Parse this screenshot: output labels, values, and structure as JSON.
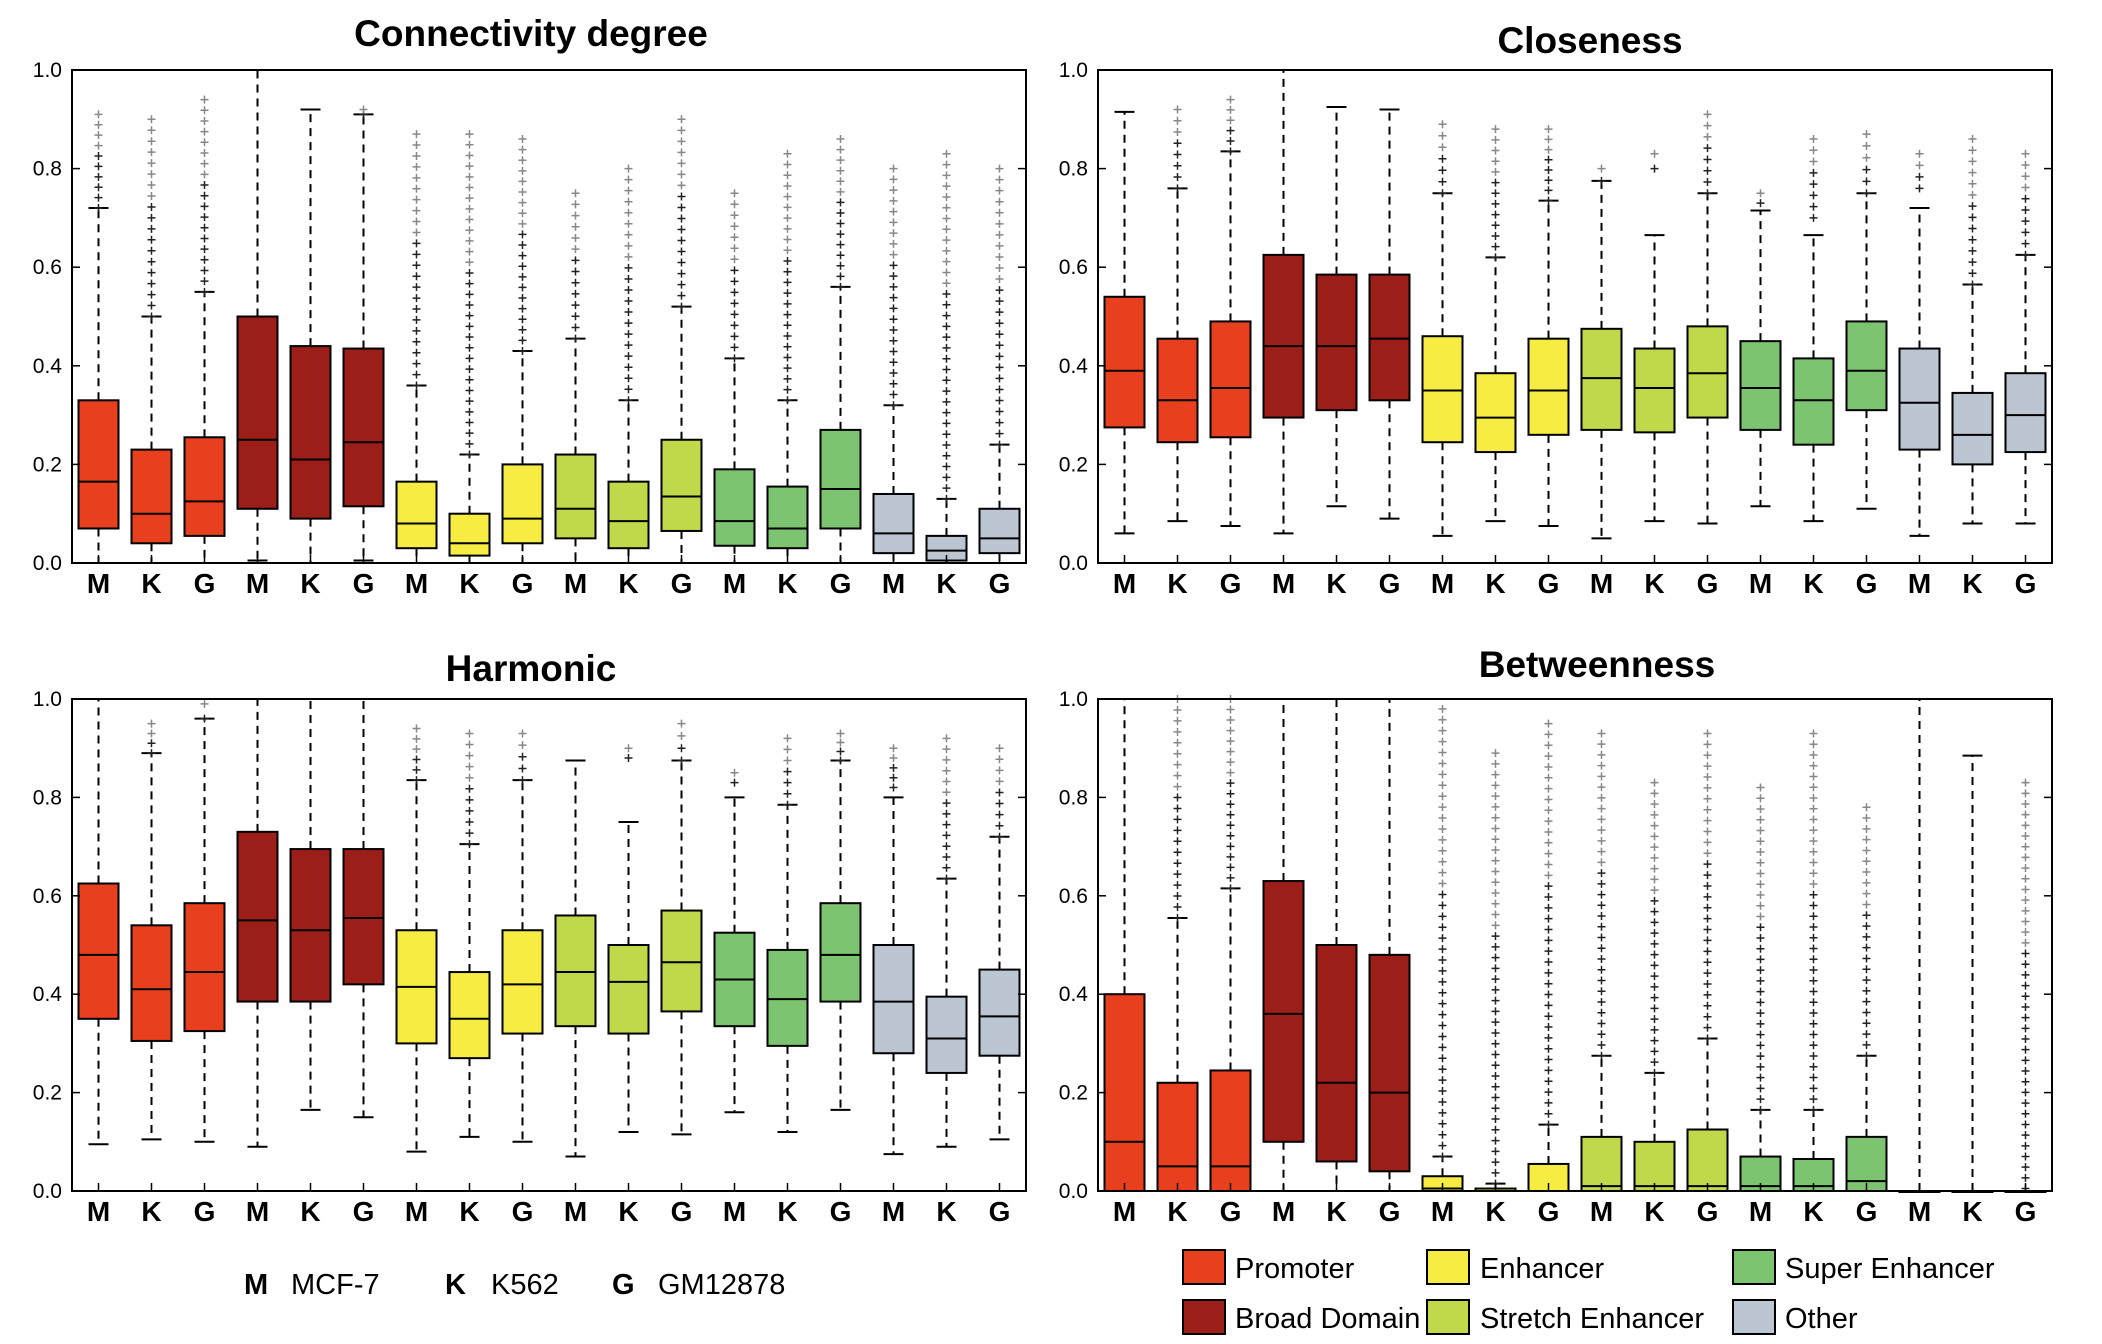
{
  "colors": {
    "Promoter": "#e8401f",
    "Broad Domain": "#9b1e18",
    "Enhancer": "#f6ec42",
    "Stretch Enhancer": "#bfd94a",
    "Super Enhancer": "#7dc470",
    "Other": "#bcc6d2"
  },
  "cell_legend": [
    {
      "key": "M",
      "name": "MCF-7"
    },
    {
      "key": "K",
      "name": "K562"
    },
    {
      "key": "G",
      "name": "GM12878"
    }
  ],
  "region_legend": [
    "Promoter",
    "Enhancer",
    "Super Enhancer",
    "Broad Domain",
    "Stretch Enhancer",
    "Other"
  ],
  "chart_data": [
    {
      "type": "box",
      "title": "Connectivity degree",
      "ylim": [
        0,
        1
      ],
      "yticks": [
        "0.0",
        "0.2",
        "0.4",
        "0.6",
        "0.8",
        "1.0"
      ],
      "categories": [
        "M",
        "K",
        "G",
        "M",
        "K",
        "G",
        "M",
        "K",
        "G",
        "M",
        "K",
        "G",
        "M",
        "K",
        "G",
        "M",
        "K",
        "G"
      ],
      "groups": [
        "Promoter",
        "Promoter",
        "Promoter",
        "Broad Domain",
        "Broad Domain",
        "Broad Domain",
        "Enhancer",
        "Enhancer",
        "Enhancer",
        "Stretch Enhancer",
        "Stretch Enhancer",
        "Stretch Enhancer",
        "Super Enhancer",
        "Super Enhancer",
        "Super Enhancer",
        "Other",
        "Other",
        "Other"
      ],
      "boxes": [
        {
          "wlo": 0.0,
          "q1": 0.07,
          "med": 0.165,
          "q3": 0.33,
          "whi": 0.72,
          "out_min": 0.72,
          "out_max": 0.91
        },
        {
          "wlo": 0.0,
          "q1": 0.04,
          "med": 0.1,
          "q3": 0.23,
          "whi": 0.5,
          "out_min": 0.5,
          "out_max": 0.9
        },
        {
          "wlo": 0.0,
          "q1": 0.055,
          "med": 0.125,
          "q3": 0.255,
          "whi": 0.55,
          "out_min": 0.55,
          "out_max": 0.94
        },
        {
          "wlo": 0.005,
          "q1": 0.11,
          "med": 0.25,
          "q3": 0.5,
          "whi": 1.0,
          "out_min": null,
          "out_max": null
        },
        {
          "wlo": 0.0,
          "q1": 0.09,
          "med": 0.21,
          "q3": 0.44,
          "whi": 0.92,
          "out_min": null,
          "out_max": null
        },
        {
          "wlo": 0.005,
          "q1": 0.115,
          "med": 0.245,
          "q3": 0.435,
          "whi": 0.91,
          "out_min": 0.91,
          "out_max": 0.92
        },
        {
          "wlo": 0.0,
          "q1": 0.03,
          "med": 0.08,
          "q3": 0.165,
          "whi": 0.36,
          "out_min": 0.36,
          "out_max": 0.87
        },
        {
          "wlo": 0.0,
          "q1": 0.015,
          "med": 0.04,
          "q3": 0.1,
          "whi": 0.22,
          "out_min": 0.22,
          "out_max": 0.87
        },
        {
          "wlo": 0.0,
          "q1": 0.04,
          "med": 0.09,
          "q3": 0.2,
          "whi": 0.43,
          "out_min": 0.43,
          "out_max": 0.86
        },
        {
          "wlo": 0.0,
          "q1": 0.05,
          "med": 0.11,
          "q3": 0.22,
          "whi": 0.455,
          "out_min": 0.455,
          "out_max": 0.75
        },
        {
          "wlo": 0.0,
          "q1": 0.03,
          "med": 0.085,
          "q3": 0.165,
          "whi": 0.33,
          "out_min": 0.33,
          "out_max": 0.8
        },
        {
          "wlo": 0.0,
          "q1": 0.065,
          "med": 0.135,
          "q3": 0.25,
          "whi": 0.52,
          "out_min": 0.52,
          "out_max": 0.9
        },
        {
          "wlo": 0.0,
          "q1": 0.035,
          "med": 0.085,
          "q3": 0.19,
          "whi": 0.415,
          "out_min": 0.415,
          "out_max": 0.75
        },
        {
          "wlo": 0.0,
          "q1": 0.03,
          "med": 0.07,
          "q3": 0.155,
          "whi": 0.33,
          "out_min": 0.33,
          "out_max": 0.83
        },
        {
          "wlo": 0.0,
          "q1": 0.07,
          "med": 0.15,
          "q3": 0.27,
          "whi": 0.56,
          "out_min": 0.56,
          "out_max": 0.86
        },
        {
          "wlo": 0.0,
          "q1": 0.02,
          "med": 0.06,
          "q3": 0.14,
          "whi": 0.32,
          "out_min": 0.32,
          "out_max": 0.8
        },
        {
          "wlo": 0.0,
          "q1": 0.005,
          "med": 0.025,
          "q3": 0.055,
          "whi": 0.13,
          "out_min": 0.13,
          "out_max": 0.83
        },
        {
          "wlo": 0.0,
          "q1": 0.02,
          "med": 0.05,
          "q3": 0.11,
          "whi": 0.24,
          "out_min": 0.24,
          "out_max": 0.8
        }
      ]
    },
    {
      "type": "box",
      "title": "Closeness",
      "ylim": [
        0,
        1
      ],
      "yticks": [
        "0.0",
        "0.2",
        "0.4",
        "0.6",
        "0.8",
        "1.0"
      ],
      "categories": [
        "M",
        "K",
        "G",
        "M",
        "K",
        "G",
        "M",
        "K",
        "G",
        "M",
        "K",
        "G",
        "M",
        "K",
        "G",
        "M",
        "K",
        "G"
      ],
      "groups": [
        "Promoter",
        "Promoter",
        "Promoter",
        "Broad Domain",
        "Broad Domain",
        "Broad Domain",
        "Enhancer",
        "Enhancer",
        "Enhancer",
        "Stretch Enhancer",
        "Stretch Enhancer",
        "Stretch Enhancer",
        "Super Enhancer",
        "Super Enhancer",
        "Super Enhancer",
        "Other",
        "Other",
        "Other"
      ],
      "boxes": [
        {
          "wlo": 0.06,
          "q1": 0.275,
          "med": 0.39,
          "q3": 0.54,
          "whi": 0.915,
          "out_min": null,
          "out_max": null
        },
        {
          "wlo": 0.085,
          "q1": 0.245,
          "med": 0.33,
          "q3": 0.455,
          "whi": 0.76,
          "out_min": 0.76,
          "out_max": 0.92
        },
        {
          "wlo": 0.075,
          "q1": 0.255,
          "med": 0.355,
          "q3": 0.49,
          "whi": 0.835,
          "out_min": 0.835,
          "out_max": 0.94
        },
        {
          "wlo": 0.06,
          "q1": 0.295,
          "med": 0.44,
          "q3": 0.625,
          "whi": 1.0,
          "out_min": null,
          "out_max": null
        },
        {
          "wlo": 0.115,
          "q1": 0.31,
          "med": 0.44,
          "q3": 0.585,
          "whi": 0.925,
          "out_min": null,
          "out_max": null
        },
        {
          "wlo": 0.09,
          "q1": 0.33,
          "med": 0.455,
          "q3": 0.585,
          "whi": 0.92,
          "out_min": null,
          "out_max": null
        },
        {
          "wlo": 0.055,
          "q1": 0.245,
          "med": 0.35,
          "q3": 0.46,
          "whi": 0.75,
          "out_min": 0.75,
          "out_max": 0.89
        },
        {
          "wlo": 0.085,
          "q1": 0.225,
          "med": 0.295,
          "q3": 0.385,
          "whi": 0.62,
          "out_min": 0.62,
          "out_max": 0.88
        },
        {
          "wlo": 0.075,
          "q1": 0.26,
          "med": 0.35,
          "q3": 0.455,
          "whi": 0.735,
          "out_min": 0.735,
          "out_max": 0.88
        },
        {
          "wlo": 0.05,
          "q1": 0.27,
          "med": 0.375,
          "q3": 0.475,
          "whi": 0.775,
          "out_min": 0.775,
          "out_max": 0.8
        },
        {
          "wlo": 0.085,
          "q1": 0.265,
          "med": 0.355,
          "q3": 0.435,
          "whi": 0.665,
          "out_min": 0.8,
          "out_max": 0.83
        },
        {
          "wlo": 0.08,
          "q1": 0.295,
          "med": 0.385,
          "q3": 0.48,
          "whi": 0.75,
          "out_min": 0.75,
          "out_max": 0.91
        },
        {
          "wlo": 0.115,
          "q1": 0.27,
          "med": 0.355,
          "q3": 0.45,
          "whi": 0.715,
          "out_min": 0.73,
          "out_max": 0.75
        },
        {
          "wlo": 0.085,
          "q1": 0.24,
          "med": 0.33,
          "q3": 0.415,
          "whi": 0.665,
          "out_min": 0.7,
          "out_max": 0.86
        },
        {
          "wlo": 0.11,
          "q1": 0.31,
          "med": 0.39,
          "q3": 0.49,
          "whi": 0.75,
          "out_min": 0.75,
          "out_max": 0.87
        },
        {
          "wlo": 0.055,
          "q1": 0.23,
          "med": 0.325,
          "q3": 0.435,
          "whi": 0.72,
          "out_min": 0.76,
          "out_max": 0.83
        },
        {
          "wlo": 0.08,
          "q1": 0.2,
          "med": 0.26,
          "q3": 0.345,
          "whi": 0.565,
          "out_min": 0.565,
          "out_max": 0.86
        },
        {
          "wlo": 0.08,
          "q1": 0.225,
          "med": 0.3,
          "q3": 0.385,
          "whi": 0.625,
          "out_min": 0.625,
          "out_max": 0.83
        }
      ]
    },
    {
      "type": "box",
      "title": "Harmonic",
      "ylim": [
        0,
        1
      ],
      "yticks": [
        "0.0",
        "0.2",
        "0.4",
        "0.6",
        "0.8",
        "1.0"
      ],
      "categories": [
        "M",
        "K",
        "G",
        "M",
        "K",
        "G",
        "M",
        "K",
        "G",
        "M",
        "K",
        "G",
        "M",
        "K",
        "G",
        "M",
        "K",
        "G"
      ],
      "groups": [
        "Promoter",
        "Promoter",
        "Promoter",
        "Broad Domain",
        "Broad Domain",
        "Broad Domain",
        "Enhancer",
        "Enhancer",
        "Enhancer",
        "Stretch Enhancer",
        "Stretch Enhancer",
        "Stretch Enhancer",
        "Super Enhancer",
        "Super Enhancer",
        "Super Enhancer",
        "Other",
        "Other",
        "Other"
      ],
      "boxes": [
        {
          "wlo": 0.095,
          "q1": 0.35,
          "med": 0.48,
          "q3": 0.625,
          "whi": 1.0,
          "out_min": null,
          "out_max": null
        },
        {
          "wlo": 0.105,
          "q1": 0.305,
          "med": 0.41,
          "q3": 0.54,
          "whi": 0.89,
          "out_min": 0.89,
          "out_max": 0.95
        },
        {
          "wlo": 0.1,
          "q1": 0.325,
          "med": 0.445,
          "q3": 0.585,
          "whi": 0.96,
          "out_min": 0.96,
          "out_max": 0.99
        },
        {
          "wlo": 0.09,
          "q1": 0.385,
          "med": 0.55,
          "q3": 0.73,
          "whi": 1.0,
          "out_min": null,
          "out_max": null
        },
        {
          "wlo": 0.165,
          "q1": 0.385,
          "med": 0.53,
          "q3": 0.695,
          "whi": 1.0,
          "out_min": null,
          "out_max": null
        },
        {
          "wlo": 0.15,
          "q1": 0.42,
          "med": 0.555,
          "q3": 0.695,
          "whi": 1.0,
          "out_min": null,
          "out_max": null
        },
        {
          "wlo": 0.08,
          "q1": 0.3,
          "med": 0.415,
          "q3": 0.53,
          "whi": 0.835,
          "out_min": 0.835,
          "out_max": 0.94
        },
        {
          "wlo": 0.11,
          "q1": 0.27,
          "med": 0.35,
          "q3": 0.445,
          "whi": 0.705,
          "out_min": 0.705,
          "out_max": 0.93
        },
        {
          "wlo": 0.1,
          "q1": 0.32,
          "med": 0.42,
          "q3": 0.53,
          "whi": 0.835,
          "out_min": 0.835,
          "out_max": 0.93
        },
        {
          "wlo": 0.07,
          "q1": 0.335,
          "med": 0.445,
          "q3": 0.56,
          "whi": 0.875,
          "out_min": null,
          "out_max": null
        },
        {
          "wlo": 0.12,
          "q1": 0.32,
          "med": 0.425,
          "q3": 0.5,
          "whi": 0.75,
          "out_min": 0.88,
          "out_max": 0.9
        },
        {
          "wlo": 0.115,
          "q1": 0.365,
          "med": 0.465,
          "q3": 0.57,
          "whi": 0.875,
          "out_min": 0.875,
          "out_max": 0.95
        },
        {
          "wlo": 0.16,
          "q1": 0.335,
          "med": 0.43,
          "q3": 0.525,
          "whi": 0.8,
          "out_min": 0.83,
          "out_max": 0.85
        },
        {
          "wlo": 0.12,
          "q1": 0.295,
          "med": 0.39,
          "q3": 0.49,
          "whi": 0.785,
          "out_min": 0.785,
          "out_max": 0.92
        },
        {
          "wlo": 0.165,
          "q1": 0.385,
          "med": 0.48,
          "q3": 0.585,
          "whi": 0.875,
          "out_min": 0.875,
          "out_max": 0.93
        },
        {
          "wlo": 0.075,
          "q1": 0.28,
          "med": 0.385,
          "q3": 0.5,
          "whi": 0.8,
          "out_min": 0.82,
          "out_max": 0.9
        },
        {
          "wlo": 0.09,
          "q1": 0.24,
          "med": 0.31,
          "q3": 0.395,
          "whi": 0.635,
          "out_min": 0.635,
          "out_max": 0.92
        },
        {
          "wlo": 0.105,
          "q1": 0.275,
          "med": 0.355,
          "q3": 0.45,
          "whi": 0.72,
          "out_min": 0.72,
          "out_max": 0.9
        }
      ]
    },
    {
      "type": "box",
      "title": "Betweenness",
      "ylim": [
        0,
        1
      ],
      "yticks": [
        "0.0",
        "0.2",
        "0.4",
        "0.6",
        "0.8",
        "1.0"
      ],
      "categories": [
        "M",
        "K",
        "G",
        "M",
        "K",
        "G",
        "M",
        "K",
        "G",
        "M",
        "K",
        "G",
        "M",
        "K",
        "G",
        "M",
        "K",
        "G"
      ],
      "groups": [
        "Promoter",
        "Promoter",
        "Promoter",
        "Broad Domain",
        "Broad Domain",
        "Broad Domain",
        "Enhancer",
        "Enhancer",
        "Enhancer",
        "Stretch Enhancer",
        "Stretch Enhancer",
        "Stretch Enhancer",
        "Super Enhancer",
        "Super Enhancer",
        "Super Enhancer",
        "Other",
        "Other",
        "Other"
      ],
      "boxes": [
        {
          "wlo": 0.0,
          "q1": 0.0,
          "med": 0.1,
          "q3": 0.4,
          "whi": 1.0,
          "out_min": null,
          "out_max": null
        },
        {
          "wlo": 0.0,
          "q1": 0.0,
          "med": 0.05,
          "q3": 0.22,
          "whi": 0.555,
          "out_min": 0.555,
          "out_max": 1.0
        },
        {
          "wlo": 0.0,
          "q1": 0.0,
          "med": 0.05,
          "q3": 0.245,
          "whi": 0.615,
          "out_min": 0.615,
          "out_max": 1.0
        },
        {
          "wlo": 0.0,
          "q1": 0.1,
          "med": 0.36,
          "q3": 0.63,
          "whi": 1.0,
          "out_min": null,
          "out_max": null
        },
        {
          "wlo": 0.0,
          "q1": 0.06,
          "med": 0.22,
          "q3": 0.5,
          "whi": 1.0,
          "out_min": null,
          "out_max": null
        },
        {
          "wlo": 0.0,
          "q1": 0.04,
          "med": 0.2,
          "q3": 0.48,
          "whi": 1.0,
          "out_min": null,
          "out_max": null
        },
        {
          "wlo": 0.0,
          "q1": 0.0,
          "med": 0.005,
          "q3": 0.03,
          "whi": 0.07,
          "out_min": 0.07,
          "out_max": 0.98
        },
        {
          "wlo": 0.0,
          "q1": 0.0,
          "med": 0.0,
          "q3": 0.005,
          "whi": 0.015,
          "out_min": 0.015,
          "out_max": 0.89
        },
        {
          "wlo": 0.0,
          "q1": 0.0,
          "med": 0.0,
          "q3": 0.055,
          "whi": 0.135,
          "out_min": 0.135,
          "out_max": 0.95
        },
        {
          "wlo": 0.0,
          "q1": 0.0,
          "med": 0.01,
          "q3": 0.11,
          "whi": 0.275,
          "out_min": 0.275,
          "out_max": 0.93
        },
        {
          "wlo": 0.0,
          "q1": 0.0,
          "med": 0.01,
          "q3": 0.1,
          "whi": 0.24,
          "out_min": 0.24,
          "out_max": 0.83
        },
        {
          "wlo": 0.0,
          "q1": 0.0,
          "med": 0.01,
          "q3": 0.125,
          "whi": 0.31,
          "out_min": 0.31,
          "out_max": 0.93
        },
        {
          "wlo": 0.0,
          "q1": 0.0,
          "med": 0.01,
          "q3": 0.07,
          "whi": 0.165,
          "out_min": 0.165,
          "out_max": 0.82
        },
        {
          "wlo": 0.0,
          "q1": 0.0,
          "med": 0.01,
          "q3": 0.065,
          "whi": 0.165,
          "out_min": 0.165,
          "out_max": 0.93
        },
        {
          "wlo": 0.0,
          "q1": 0.0,
          "med": 0.02,
          "q3": 0.11,
          "whi": 0.275,
          "out_min": 0.275,
          "out_max": 0.78
        },
        {
          "wlo": 0.0,
          "q1": 0.0,
          "med": 0.0,
          "q3": 0.0,
          "whi": 1.0,
          "out_min": null,
          "out_max": null
        },
        {
          "wlo": 0.0,
          "q1": 0.0,
          "med": 0.0,
          "q3": 0.0,
          "whi": 0.885,
          "out_min": null,
          "out_max": null
        },
        {
          "wlo": 0.0,
          "q1": 0.0,
          "med": 0.0,
          "q3": 0.0,
          "whi": 0.0,
          "out_min": 0.005,
          "out_max": 0.83
        }
      ]
    }
  ]
}
